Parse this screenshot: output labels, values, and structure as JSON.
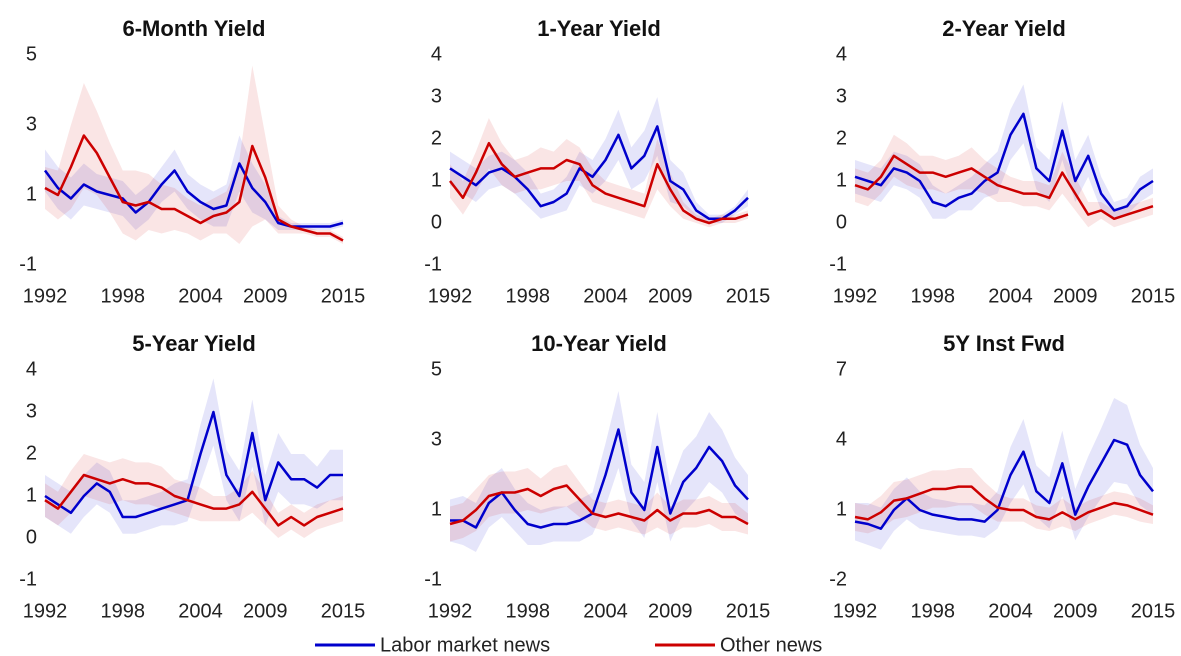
{
  "chart_data": [
    {
      "type": "line",
      "title": "6-Month Yield",
      "x": [
        1992,
        1993,
        1994,
        1995,
        1996,
        1997,
        1998,
        1999,
        2000,
        2001,
        2002,
        2003,
        2004,
        2005,
        2006,
        2007,
        2008,
        2009,
        2010,
        2011,
        2012,
        2013,
        2014,
        2015
      ],
      "xlim": [
        1992,
        2015
      ],
      "xticks": [
        1992,
        1998,
        2004,
        2009,
        2015
      ],
      "ylim": [
        -1,
        5
      ],
      "yticks": [
        -1,
        1,
        3,
        5
      ],
      "series": [
        {
          "name": "Labor market news",
          "color": "#0000cc",
          "values": [
            1.7,
            1.2,
            0.9,
            1.3,
            1.1,
            1.0,
            0.9,
            0.5,
            0.8,
            1.3,
            1.7,
            1.1,
            0.8,
            0.6,
            0.7,
            1.9,
            1.2,
            0.8,
            0.2,
            0.1,
            0.1,
            0.1,
            0.1,
            0.2
          ],
          "ci": [
            0.6,
            0.6,
            0.6,
            0.6,
            0.5,
            0.5,
            0.5,
            0.5,
            0.5,
            0.5,
            0.6,
            0.5,
            0.5,
            0.5,
            0.6,
            0.8,
            0.7,
            0.5,
            0.2,
            0.1,
            0.1,
            0.1,
            0.1,
            0.1
          ]
        },
        {
          "name": "Other news",
          "color": "#cc0000",
          "values": [
            1.2,
            1.0,
            1.8,
            2.7,
            2.2,
            1.5,
            0.8,
            0.7,
            0.8,
            0.6,
            0.6,
            0.4,
            0.2,
            0.4,
            0.5,
            0.8,
            2.4,
            1.5,
            0.3,
            0.1,
            0.0,
            -0.1,
            -0.1,
            -0.3
          ],
          "ci": [
            0.6,
            0.7,
            1.2,
            1.5,
            1.2,
            1.0,
            0.9,
            1.0,
            0.8,
            0.7,
            0.6,
            0.5,
            0.5,
            0.5,
            0.6,
            1.2,
            2.3,
            1.2,
            0.4,
            0.2,
            0.1,
            0.1,
            0.1,
            0.1
          ]
        }
      ]
    },
    {
      "type": "line",
      "title": "1-Year Yield",
      "x": [
        1992,
        1993,
        1994,
        1995,
        1996,
        1997,
        1998,
        1999,
        2000,
        2001,
        2002,
        2003,
        2004,
        2005,
        2006,
        2007,
        2008,
        2009,
        2010,
        2011,
        2012,
        2013,
        2014,
        2015
      ],
      "xlim": [
        1992,
        2015
      ],
      "xticks": [
        1992,
        1998,
        2004,
        2009,
        2015
      ],
      "ylim": [
        -1,
        4
      ],
      "yticks": [
        -1,
        0,
        1,
        2,
        3,
        4
      ],
      "series": [
        {
          "name": "Labor market news",
          "color": "#0000cc",
          "values": [
            1.3,
            1.1,
            0.9,
            1.2,
            1.3,
            1.1,
            0.8,
            0.4,
            0.5,
            0.7,
            1.3,
            1.1,
            1.5,
            2.1,
            1.3,
            1.6,
            2.3,
            1.0,
            0.8,
            0.3,
            0.1,
            0.1,
            0.3,
            0.6
          ],
          "ci": [
            0.4,
            0.4,
            0.4,
            0.4,
            0.4,
            0.4,
            0.4,
            0.3,
            0.3,
            0.4,
            0.4,
            0.4,
            0.5,
            0.6,
            0.5,
            0.6,
            0.7,
            0.5,
            0.4,
            0.2,
            0.1,
            0.1,
            0.1,
            0.2
          ]
        },
        {
          "name": "Other news",
          "color": "#cc0000",
          "values": [
            1.0,
            0.6,
            1.2,
            1.9,
            1.4,
            1.1,
            1.2,
            1.3,
            1.3,
            1.5,
            1.4,
            0.9,
            0.7,
            0.6,
            0.5,
            0.4,
            1.4,
            0.8,
            0.3,
            0.1,
            0.0,
            0.1,
            0.1,
            0.2
          ],
          "ci": [
            0.4,
            0.4,
            0.5,
            0.6,
            0.5,
            0.4,
            0.4,
            0.5,
            0.4,
            0.5,
            0.4,
            0.4,
            0.3,
            0.3,
            0.3,
            0.3,
            0.6,
            0.4,
            0.2,
            0.1,
            0.1,
            0.1,
            0.1,
            0.1
          ]
        }
      ]
    },
    {
      "type": "line",
      "title": "2-Year Yield",
      "x": [
        1992,
        1993,
        1994,
        1995,
        1996,
        1997,
        1998,
        1999,
        2000,
        2001,
        2002,
        2003,
        2004,
        2005,
        2006,
        2007,
        2008,
        2009,
        2010,
        2011,
        2012,
        2013,
        2014,
        2015
      ],
      "xlim": [
        1992,
        2015
      ],
      "xticks": [
        1992,
        1998,
        2004,
        2009,
        2015
      ],
      "ylim": [
        -1,
        4
      ],
      "yticks": [
        -1,
        0,
        1,
        2,
        3,
        4
      ],
      "series": [
        {
          "name": "Labor market news",
          "color": "#0000cc",
          "values": [
            1.1,
            1.0,
            0.9,
            1.3,
            1.2,
            1.0,
            0.5,
            0.4,
            0.6,
            0.7,
            1.0,
            1.2,
            2.1,
            2.6,
            1.3,
            1.0,
            2.2,
            1.0,
            1.6,
            0.7,
            0.3,
            0.4,
            0.8,
            1.0
          ],
          "ci": [
            0.4,
            0.4,
            0.4,
            0.4,
            0.4,
            0.4,
            0.4,
            0.3,
            0.3,
            0.4,
            0.4,
            0.5,
            0.6,
            0.7,
            0.5,
            0.5,
            0.7,
            0.5,
            0.5,
            0.4,
            0.2,
            0.2,
            0.3,
            0.3
          ]
        },
        {
          "name": "Other news",
          "color": "#cc0000",
          "values": [
            0.9,
            0.8,
            1.1,
            1.6,
            1.4,
            1.2,
            1.2,
            1.1,
            1.2,
            1.3,
            1.1,
            0.9,
            0.8,
            0.7,
            0.7,
            0.6,
            1.2,
            0.7,
            0.2,
            0.3,
            0.1,
            0.2,
            0.3,
            0.4
          ],
          "ci": [
            0.4,
            0.4,
            0.4,
            0.5,
            0.5,
            0.4,
            0.4,
            0.4,
            0.4,
            0.5,
            0.4,
            0.4,
            0.3,
            0.3,
            0.3,
            0.3,
            0.5,
            0.4,
            0.3,
            0.2,
            0.2,
            0.2,
            0.2,
            0.2
          ]
        }
      ]
    },
    {
      "type": "line",
      "title": "5-Year Yield",
      "x": [
        1992,
        1993,
        1994,
        1995,
        1996,
        1997,
        1998,
        1999,
        2000,
        2001,
        2002,
        2003,
        2004,
        2005,
        2006,
        2007,
        2008,
        2009,
        2010,
        2011,
        2012,
        2013,
        2014,
        2015
      ],
      "xlim": [
        1992,
        2015
      ],
      "xticks": [
        1992,
        1998,
        2004,
        2009,
        2015
      ],
      "ylim": [
        -1,
        4
      ],
      "yticks": [
        -1,
        0,
        1,
        2,
        3,
        4
      ],
      "series": [
        {
          "name": "Labor market news",
          "color": "#0000cc",
          "values": [
            1.0,
            0.8,
            0.6,
            1.0,
            1.3,
            1.1,
            0.5,
            0.5,
            0.6,
            0.7,
            0.8,
            0.9,
            2.0,
            3.0,
            1.5,
            1.0,
            2.5,
            0.9,
            1.8,
            1.4,
            1.4,
            1.2,
            1.5,
            1.5
          ],
          "ci": [
            0.5,
            0.5,
            0.5,
            0.5,
            0.5,
            0.5,
            0.4,
            0.4,
            0.4,
            0.4,
            0.5,
            0.5,
            0.7,
            0.8,
            0.6,
            0.6,
            0.8,
            0.6,
            0.7,
            0.6,
            0.6,
            0.5,
            0.6,
            0.6
          ]
        },
        {
          "name": "Other news",
          "color": "#cc0000",
          "values": [
            0.9,
            0.7,
            1.1,
            1.5,
            1.4,
            1.3,
            1.4,
            1.3,
            1.3,
            1.2,
            1.0,
            0.9,
            0.8,
            0.7,
            0.7,
            0.8,
            1.1,
            0.7,
            0.3,
            0.5,
            0.3,
            0.5,
            0.6,
            0.7
          ],
          "ci": [
            0.4,
            0.4,
            0.5,
            0.5,
            0.5,
            0.5,
            0.5,
            0.5,
            0.5,
            0.5,
            0.4,
            0.4,
            0.4,
            0.3,
            0.3,
            0.4,
            0.5,
            0.4,
            0.3,
            0.3,
            0.3,
            0.3,
            0.3,
            0.3
          ]
        }
      ]
    },
    {
      "type": "line",
      "title": "10-Year Yield",
      "x": [
        1992,
        1993,
        1994,
        1995,
        1996,
        1997,
        1998,
        1999,
        2000,
        2001,
        2002,
        2003,
        2004,
        2005,
        2006,
        2007,
        2008,
        2009,
        2010,
        2011,
        2012,
        2013,
        2014,
        2015
      ],
      "xlim": [
        1992,
        2015
      ],
      "xticks": [
        1992,
        1998,
        2004,
        2009,
        2015
      ],
      "ylim": [
        -1,
        5
      ],
      "yticks": [
        -1,
        1,
        3,
        5
      ],
      "series": [
        {
          "name": "Labor market news",
          "color": "#0000cc",
          "values": [
            0.7,
            0.7,
            0.5,
            1.2,
            1.5,
            1.0,
            0.6,
            0.5,
            0.6,
            0.6,
            0.7,
            0.9,
            2.0,
            3.3,
            1.5,
            1.0,
            2.8,
            0.9,
            1.8,
            2.2,
            2.8,
            2.4,
            1.7,
            1.3
          ],
          "ci": [
            0.6,
            0.7,
            0.7,
            0.7,
            0.7,
            0.6,
            0.6,
            0.5,
            0.5,
            0.5,
            0.6,
            0.6,
            0.9,
            1.1,
            0.8,
            0.8,
            1.0,
            0.8,
            0.9,
            0.9,
            1.0,
            0.9,
            0.8,
            0.7
          ]
        },
        {
          "name": "Other news",
          "color": "#cc0000",
          "values": [
            0.6,
            0.7,
            1.0,
            1.4,
            1.5,
            1.5,
            1.6,
            1.4,
            1.6,
            1.7,
            1.3,
            0.9,
            0.8,
            0.9,
            0.8,
            0.7,
            1.0,
            0.7,
            0.9,
            0.9,
            1.0,
            0.8,
            0.8,
            0.6
          ],
          "ci": [
            0.5,
            0.5,
            0.6,
            0.6,
            0.6,
            0.6,
            0.6,
            0.5,
            0.6,
            0.6,
            0.5,
            0.4,
            0.4,
            0.4,
            0.4,
            0.4,
            0.5,
            0.4,
            0.4,
            0.4,
            0.4,
            0.4,
            0.4,
            0.3
          ]
        }
      ]
    },
    {
      "type": "line",
      "title": "5Y Inst Fwd",
      "x": [
        1992,
        1993,
        1994,
        1995,
        1996,
        1997,
        1998,
        1999,
        2000,
        2001,
        2002,
        2003,
        2004,
        2005,
        2006,
        2007,
        2008,
        2009,
        2010,
        2011,
        2012,
        2013,
        2014,
        2015
      ],
      "xlim": [
        1992,
        2015
      ],
      "xticks": [
        1992,
        1998,
        2004,
        2009,
        2015
      ],
      "ylim": [
        -2,
        7
      ],
      "yticks": [
        -2,
        1,
        4,
        7
      ],
      "series": [
        {
          "name": "Labor market news",
          "color": "#0000cc",
          "values": [
            0.5,
            0.4,
            0.2,
            1.0,
            1.5,
            1.0,
            0.8,
            0.7,
            0.6,
            0.6,
            0.5,
            1.0,
            2.5,
            3.5,
            1.8,
            1.3,
            3.0,
            0.8,
            2.0,
            3.0,
            4.0,
            3.8,
            2.5,
            1.8
          ],
          "ci": [
            0.8,
            0.9,
            0.9,
            0.9,
            0.9,
            0.8,
            0.7,
            0.7,
            0.7,
            0.7,
            0.7,
            0.8,
            1.2,
            1.4,
            1.1,
            1.1,
            1.4,
            1.1,
            1.3,
            1.5,
            1.8,
            1.7,
            1.3,
            1.0
          ]
        },
        {
          "name": "Other news",
          "color": "#cc0000",
          "values": [
            0.7,
            0.6,
            0.9,
            1.4,
            1.5,
            1.7,
            1.9,
            1.9,
            2.0,
            2.0,
            1.5,
            1.1,
            1.0,
            1.0,
            0.7,
            0.6,
            0.9,
            0.6,
            0.9,
            1.1,
            1.3,
            1.2,
            1.0,
            0.8
          ],
          "ci": [
            0.6,
            0.6,
            0.7,
            0.8,
            0.8,
            0.8,
            0.8,
            0.8,
            0.8,
            0.8,
            0.7,
            0.6,
            0.5,
            0.5,
            0.5,
            0.5,
            0.6,
            0.5,
            0.5,
            0.5,
            0.5,
            0.5,
            0.5,
            0.4
          ]
        }
      ]
    }
  ]
}
